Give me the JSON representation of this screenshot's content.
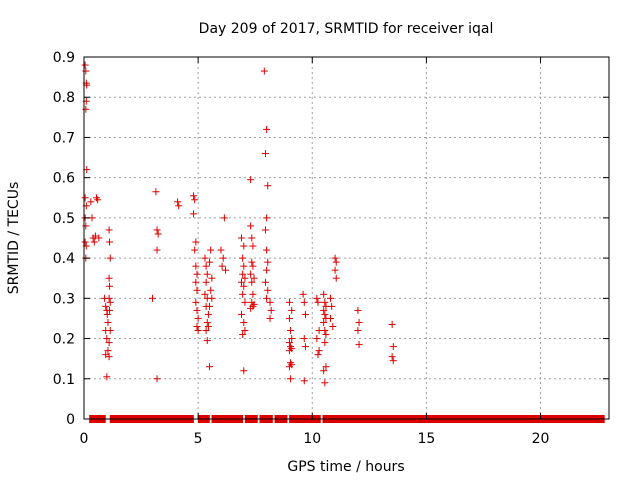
{
  "chart_data": {
    "type": "scatter",
    "title": "Day 209 of 2017, SRMTID for receiver iqal",
    "xlabel": "GPS time / hours",
    "ylabel": "SRMTID / TECUs",
    "xlim": [
      0,
      23.0
    ],
    "ylim": [
      0,
      0.9
    ],
    "xticks": [
      0,
      5,
      10,
      15,
      20
    ],
    "xtick_labels": [
      "0",
      "5",
      "10",
      "15",
      "20"
    ],
    "yticks": [
      0,
      0.1,
      0.2,
      0.3,
      0.4,
      0.5,
      0.6,
      0.7,
      0.8,
      0.9
    ],
    "ytick_labels": [
      "0",
      "0.1",
      "0.2",
      "0.3",
      "0.4",
      "0.5",
      "0.6",
      "0.7",
      "0.8",
      "0.9"
    ],
    "grid": true,
    "marker": "+",
    "series": [
      {
        "name": "SRMTID",
        "color": "#dd0000",
        "points": [
          [
            0.05,
            0.88
          ],
          [
            0.08,
            0.865
          ],
          [
            0.1,
            0.835
          ],
          [
            0.12,
            0.83
          ],
          [
            0.1,
            0.79
          ],
          [
            0.08,
            0.77
          ],
          [
            0.12,
            0.62
          ],
          [
            0.05,
            0.55
          ],
          [
            0.1,
            0.53
          ],
          [
            0.05,
            0.5
          ],
          [
            0.08,
            0.48
          ],
          [
            0.05,
            0.44
          ],
          [
            0.1,
            0.43
          ],
          [
            0.08,
            0.4
          ],
          [
            0.3,
            0.54
          ],
          [
            0.35,
            0.5
          ],
          [
            0.4,
            0.45
          ],
          [
            0.45,
            0.44
          ],
          [
            0.5,
            0.455
          ],
          [
            0.55,
            0.55
          ],
          [
            0.6,
            0.545
          ],
          [
            0.65,
            0.45
          ],
          [
            0.9,
            0.3
          ],
          [
            0.95,
            0.28
          ],
          [
            1.0,
            0.27
          ],
          [
            1.02,
            0.26
          ],
          [
            1.05,
            0.24
          ],
          [
            0.95,
            0.22
          ],
          [
            1.0,
            0.2
          ],
          [
            1.05,
            0.17
          ],
          [
            0.95,
            0.16
          ],
          [
            1.1,
            0.155
          ],
          [
            1.0,
            0.105
          ],
          [
            1.1,
            0.47
          ],
          [
            1.12,
            0.44
          ],
          [
            1.15,
            0.4
          ],
          [
            1.1,
            0.35
          ],
          [
            1.12,
            0.33
          ],
          [
            1.1,
            0.3
          ],
          [
            1.15,
            0.29
          ],
          [
            1.12,
            0.27
          ],
          [
            1.15,
            0.22
          ],
          [
            1.1,
            0.19
          ],
          [
            3.0,
            0.3
          ],
          [
            3.15,
            0.565
          ],
          [
            3.2,
            0.47
          ],
          [
            3.25,
            0.46
          ],
          [
            3.2,
            0.42
          ],
          [
            3.2,
            0.1
          ],
          [
            4.1,
            0.54
          ],
          [
            4.15,
            0.53
          ],
          [
            4.8,
            0.555
          ],
          [
            4.85,
            0.545
          ],
          [
            4.8,
            0.51
          ],
          [
            4.9,
            0.44
          ],
          [
            4.85,
            0.42
          ],
          [
            4.9,
            0.38
          ],
          [
            4.95,
            0.36
          ],
          [
            4.9,
            0.34
          ],
          [
            4.95,
            0.32
          ],
          [
            4.9,
            0.29
          ],
          [
            4.95,
            0.27
          ],
          [
            5.0,
            0.25
          ],
          [
            4.95,
            0.23
          ],
          [
            5.0,
            0.22
          ],
          [
            5.3,
            0.4
          ],
          [
            5.35,
            0.38
          ],
          [
            5.4,
            0.36
          ],
          [
            5.35,
            0.34
          ],
          [
            5.3,
            0.31
          ],
          [
            5.4,
            0.3
          ],
          [
            5.35,
            0.28
          ],
          [
            5.45,
            0.26
          ],
          [
            5.4,
            0.24
          ],
          [
            5.45,
            0.23
          ],
          [
            5.35,
            0.22
          ],
          [
            5.4,
            0.195
          ],
          [
            5.5,
            0.13
          ],
          [
            5.55,
            0.42
          ],
          [
            5.5,
            0.39
          ],
          [
            5.6,
            0.35
          ],
          [
            5.55,
            0.32
          ],
          [
            5.6,
            0.3
          ],
          [
            5.5,
            0.28
          ],
          [
            6.0,
            0.42
          ],
          [
            6.1,
            0.4
          ],
          [
            6.05,
            0.38
          ],
          [
            6.15,
            0.5
          ],
          [
            6.2,
            0.37
          ],
          [
            6.9,
            0.45
          ],
          [
            7.0,
            0.43
          ],
          [
            6.95,
            0.4
          ],
          [
            7.0,
            0.38
          ],
          [
            6.95,
            0.36
          ],
          [
            7.05,
            0.35
          ],
          [
            6.9,
            0.34
          ],
          [
            7.0,
            0.33
          ],
          [
            6.95,
            0.31
          ],
          [
            7.05,
            0.29
          ],
          [
            6.9,
            0.26
          ],
          [
            7.0,
            0.24
          ],
          [
            7.05,
            0.22
          ],
          [
            6.95,
            0.21
          ],
          [
            7.0,
            0.12
          ],
          [
            7.3,
            0.595
          ],
          [
            7.3,
            0.48
          ],
          [
            7.35,
            0.45
          ],
          [
            7.4,
            0.43
          ],
          [
            7.35,
            0.39
          ],
          [
            7.4,
            0.38
          ],
          [
            7.3,
            0.36
          ],
          [
            7.45,
            0.35
          ],
          [
            7.35,
            0.34
          ],
          [
            7.4,
            0.31
          ],
          [
            7.35,
            0.29
          ],
          [
            7.45,
            0.285
          ],
          [
            7.4,
            0.28
          ],
          [
            7.3,
            0.275
          ],
          [
            7.9,
            0.865
          ],
          [
            8.0,
            0.72
          ],
          [
            7.95,
            0.66
          ],
          [
            8.05,
            0.58
          ],
          [
            8.0,
            0.5
          ],
          [
            7.95,
            0.47
          ],
          [
            8.0,
            0.42
          ],
          [
            8.05,
            0.39
          ],
          [
            8.0,
            0.37
          ],
          [
            7.95,
            0.34
          ],
          [
            8.05,
            0.32
          ],
          [
            8.0,
            0.3
          ],
          [
            8.15,
            0.29
          ],
          [
            8.2,
            0.27
          ],
          [
            8.15,
            0.25
          ],
          [
            9.0,
            0.29
          ],
          [
            9.1,
            0.27
          ],
          [
            9.0,
            0.25
          ],
          [
            9.05,
            0.22
          ],
          [
            9.1,
            0.2
          ],
          [
            9.0,
            0.19
          ],
          [
            9.05,
            0.18
          ],
          [
            9.1,
            0.175
          ],
          [
            9.0,
            0.17
          ],
          [
            9.05,
            0.14
          ],
          [
            9.1,
            0.135
          ],
          [
            9.0,
            0.13
          ],
          [
            9.05,
            0.1
          ],
          [
            9.6,
            0.31
          ],
          [
            9.65,
            0.29
          ],
          [
            9.7,
            0.26
          ],
          [
            9.65,
            0.2
          ],
          [
            9.7,
            0.18
          ],
          [
            9.65,
            0.095
          ],
          [
            10.2,
            0.3
          ],
          [
            10.25,
            0.29
          ],
          [
            10.3,
            0.22
          ],
          [
            10.2,
            0.2
          ],
          [
            10.3,
            0.17
          ],
          [
            10.25,
            0.16
          ],
          [
            10.5,
            0.31
          ],
          [
            10.55,
            0.29
          ],
          [
            10.6,
            0.28
          ],
          [
            10.5,
            0.27
          ],
          [
            10.55,
            0.26
          ],
          [
            10.6,
            0.25
          ],
          [
            10.5,
            0.24
          ],
          [
            10.55,
            0.22
          ],
          [
            10.6,
            0.21
          ],
          [
            10.55,
            0.19
          ],
          [
            10.6,
            0.13
          ],
          [
            10.5,
            0.12
          ],
          [
            10.55,
            0.09
          ],
          [
            10.8,
            0.3
          ],
          [
            10.85,
            0.28
          ],
          [
            10.8,
            0.25
          ],
          [
            10.9,
            0.23
          ],
          [
            11.0,
            0.4
          ],
          [
            11.05,
            0.39
          ],
          [
            11.0,
            0.37
          ],
          [
            11.05,
            0.35
          ],
          [
            12.0,
            0.27
          ],
          [
            12.05,
            0.24
          ],
          [
            12.0,
            0.22
          ],
          [
            12.05,
            0.185
          ],
          [
            13.5,
            0.235
          ],
          [
            13.55,
            0.18
          ],
          [
            13.5,
            0.155
          ],
          [
            13.55,
            0.145
          ]
        ],
        "zero_run": [
          0.25,
          22.8
        ],
        "zero_gaps": [
          [
            0.95,
            1.15
          ],
          [
            4.8,
            5.0
          ],
          [
            5.5,
            5.6
          ],
          [
            6.95,
            7.05
          ],
          [
            7.6,
            7.7
          ],
          [
            8.25,
            8.35
          ],
          [
            8.9,
            9.0
          ],
          [
            10.35,
            10.45
          ]
        ]
      }
    ]
  }
}
